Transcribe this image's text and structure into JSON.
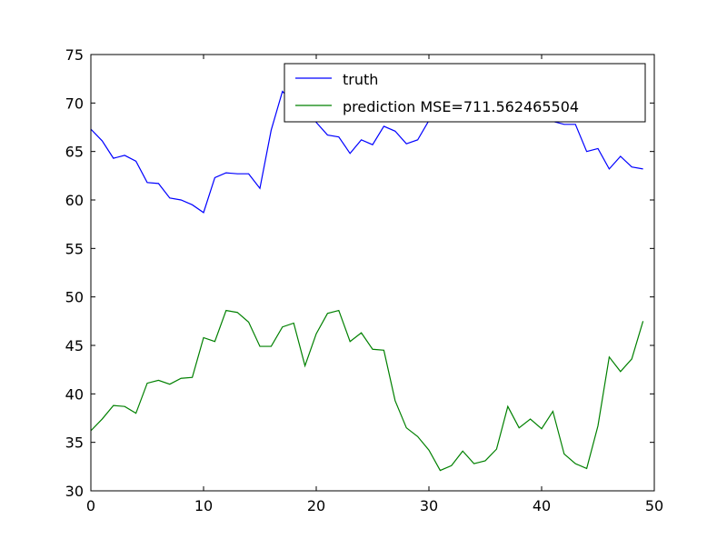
{
  "chart_data": {
    "type": "line",
    "title": "",
    "xlabel": "",
    "ylabel": "",
    "xlim": [
      0,
      50
    ],
    "ylim": [
      30,
      75
    ],
    "xticks": [
      0,
      10,
      20,
      30,
      40,
      50
    ],
    "yticks": [
      30,
      35,
      40,
      45,
      50,
      55,
      60,
      65,
      70,
      75
    ],
    "xtick_labels": [
      "0",
      "10",
      "20",
      "30",
      "40",
      "50"
    ],
    "ytick_labels": [
      "30",
      "35",
      "40",
      "45",
      "50",
      "55",
      "60",
      "65",
      "70",
      "75"
    ],
    "grid": false,
    "legend": {
      "placement": "top-right"
    },
    "series": [
      {
        "name": "truth",
        "color": "#0000ff",
        "x": [
          0,
          1,
          2,
          3,
          4,
          5,
          6,
          7,
          8,
          9,
          10,
          11,
          12,
          13,
          14,
          15,
          16,
          17,
          18,
          19,
          20,
          21,
          22,
          23,
          24,
          25,
          26,
          27,
          28,
          29,
          30,
          31,
          32,
          33,
          34,
          35,
          36,
          37,
          38,
          39,
          40,
          41,
          42,
          43,
          44,
          45,
          46,
          47,
          48,
          49
        ],
        "y": [
          67.3,
          66.1,
          64.3,
          64.6,
          64.0,
          61.8,
          61.7,
          60.2,
          60.0,
          59.5,
          58.7,
          62.3,
          62.8,
          62.7,
          62.7,
          61.2,
          67.2,
          71.2,
          70.0,
          69.5,
          68.0,
          66.7,
          66.5,
          64.8,
          66.2,
          65.7,
          67.6,
          67.1,
          65.8,
          66.2,
          68.2,
          70.0,
          71.0,
          70.5,
          70.0,
          69.8,
          70.2,
          70.5,
          70.0,
          69.8,
          68.3,
          68.1,
          67.8,
          67.8,
          65.0,
          65.3,
          63.2,
          64.5,
          63.4,
          63.2
        ]
      },
      {
        "name": "prediction MSE=711.562465504",
        "color": "#008000",
        "x": [
          0,
          1,
          2,
          3,
          4,
          5,
          6,
          7,
          8,
          9,
          10,
          11,
          12,
          13,
          14,
          15,
          16,
          17,
          18,
          19,
          20,
          21,
          22,
          23,
          24,
          25,
          26,
          27,
          28,
          29,
          30,
          31,
          32,
          33,
          34,
          35,
          36,
          37,
          38,
          39,
          40,
          41,
          42,
          43,
          44,
          45,
          46,
          47,
          48,
          49
        ],
        "y": [
          36.2,
          37.4,
          38.8,
          38.7,
          38.0,
          41.1,
          41.4,
          41.0,
          41.6,
          41.7,
          45.8,
          45.4,
          48.6,
          48.4,
          47.4,
          44.9,
          44.9,
          46.9,
          47.3,
          42.9,
          46.2,
          48.3,
          48.6,
          45.4,
          46.3,
          44.6,
          44.5,
          39.3,
          36.5,
          35.6,
          34.2,
          32.1,
          32.6,
          34.1,
          32.8,
          33.1,
          34.3,
          38.7,
          36.5,
          37.4,
          36.4,
          38.2,
          33.8,
          32.8,
          32.3,
          36.7,
          43.8,
          42.3,
          43.6,
          47.5
        ]
      }
    ]
  }
}
